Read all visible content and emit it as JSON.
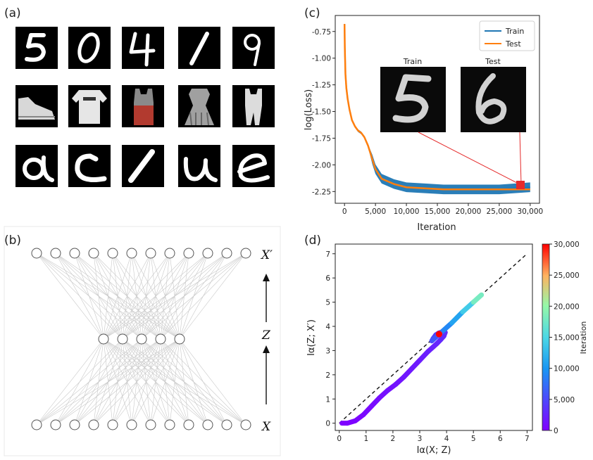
{
  "panels": {
    "a": {
      "label": "(a)"
    },
    "b": {
      "label": "(b)",
      "top_label": "X′",
      "mid_label": "Z",
      "bottom_label": "X"
    },
    "c": {
      "label": "(c)",
      "inset_train_title": "Train",
      "inset_test_title": "Test"
    },
    "d": {
      "label": "(d)"
    }
  },
  "chart_data": [
    {
      "id": "c",
      "type": "line",
      "xlabel": "Iteration",
      "ylabel": "log(Loss)",
      "xlim": [
        -1500,
        31500
      ],
      "ylim": [
        -2.36,
        -0.6
      ],
      "xticks": [
        0,
        5000,
        10000,
        15000,
        20000,
        25000,
        30000
      ],
      "xtick_labels": [
        "0",
        "5,000",
        "10,000",
        "15,000",
        "20,000",
        "25,000",
        "30,000"
      ],
      "yticks": [
        -0.75,
        -1.0,
        -1.25,
        -1.5,
        -1.75,
        -2.0,
        -2.25
      ],
      "ytick_labels": [
        "-0.75",
        "-1.00",
        "-1.25",
        "-1.50",
        "-1.75",
        "-2.00",
        "-2.25"
      ],
      "legend_position": "top-right",
      "series": [
        {
          "name": "Train",
          "color": "#1f77b4",
          "x": [
            0,
            50,
            150,
            300,
            500,
            800,
            1200,
            1700,
            2200,
            2700,
            3200,
            3800,
            4500,
            5000,
            6000,
            8000,
            10000,
            13000,
            16000,
            20000,
            25000,
            30000
          ],
          "y": [
            -0.68,
            -0.9,
            -1.15,
            -1.28,
            -1.38,
            -1.48,
            -1.58,
            -1.64,
            -1.68,
            -1.7,
            -1.74,
            -1.82,
            -1.95,
            -2.04,
            -2.13,
            -2.18,
            -2.21,
            -2.22,
            -2.23,
            -2.23,
            -2.23,
            -2.21
          ]
        },
        {
          "name": "Test",
          "color": "#ff7f0e",
          "x": [
            0,
            50,
            150,
            300,
            500,
            800,
            1200,
            1700,
            2200,
            2700,
            3200,
            3800,
            4500,
            5000,
            6000,
            8000,
            10000,
            13000,
            16000,
            20000,
            25000,
            30000
          ],
          "y": [
            -0.68,
            -0.9,
            -1.15,
            -1.28,
            -1.38,
            -1.48,
            -1.58,
            -1.64,
            -1.68,
            -1.7,
            -1.74,
            -1.82,
            -1.95,
            -2.04,
            -2.13,
            -2.18,
            -2.21,
            -2.22,
            -2.23,
            -2.23,
            -2.23,
            -2.23
          ]
        }
      ]
    },
    {
      "id": "d",
      "type": "scatter",
      "xlabel": "Iα(X; Z)",
      "ylabel": "Iα(Z; X′)",
      "xlim": [
        -0.15,
        7.2
      ],
      "ylim": [
        -0.3,
        7.4
      ],
      "xticks": [
        0,
        1,
        2,
        3,
        4,
        5,
        6,
        7
      ],
      "yticks": [
        0,
        1,
        2,
        3,
        4,
        5,
        6,
        7
      ],
      "reference_line": {
        "x": [
          0,
          7
        ],
        "y": [
          0,
          7
        ],
        "style": "dashed",
        "color": "#111111"
      },
      "colorbar": {
        "label": "Iteration",
        "min": 0,
        "max": 30000,
        "ticks": [
          0,
          5000,
          10000,
          15000,
          20000,
          25000,
          30000
        ],
        "tick_labels": [
          "0",
          "5,000",
          "10,000",
          "15,000",
          "20,000",
          "25,000",
          "30,000"
        ],
        "colormap": "rainbow"
      },
      "trajectory": {
        "x": [
          0.1,
          0.3,
          0.6,
          0.9,
          1.2,
          1.5,
          1.8,
          2.1,
          2.4,
          2.7,
          3.0,
          3.3,
          3.5,
          3.65,
          3.78,
          3.9,
          3.95,
          3.85,
          3.7,
          3.6,
          3.5,
          3.45,
          3.5,
          3.7,
          3.9,
          4.2,
          4.6,
          5.0,
          5.3
        ],
        "y": [
          0.0,
          0.0,
          0.1,
          0.35,
          0.7,
          1.05,
          1.35,
          1.6,
          1.9,
          2.25,
          2.6,
          2.95,
          3.15,
          3.3,
          3.45,
          3.6,
          3.75,
          3.78,
          3.72,
          3.65,
          3.5,
          3.4,
          3.45,
          3.65,
          3.85,
          4.15,
          4.6,
          5.0,
          5.3
        ],
        "iteration": [
          0,
          200,
          400,
          600,
          800,
          1000,
          1200,
          1400,
          1600,
          1800,
          2000,
          2200,
          2400,
          2600,
          2800,
          3000,
          3300,
          3600,
          4000,
          4400,
          4800,
          5300,
          6000,
          7500,
          9000,
          11000,
          14000,
          18000,
          24000
        ],
        "endpoint_iterations": [
          27000,
          28000,
          29000,
          30000
        ]
      }
    }
  ]
}
